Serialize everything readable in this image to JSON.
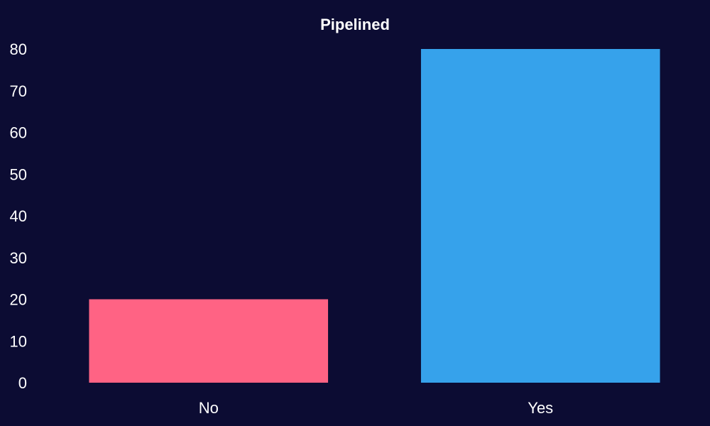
{
  "chart_data": {
    "type": "bar",
    "title": "Pipelined",
    "xlabel": "",
    "ylabel": "",
    "categories": [
      "No",
      "Yes"
    ],
    "values": [
      20,
      80
    ],
    "colors": [
      "#ff6384",
      "#36a2eb"
    ],
    "ylim": [
      0,
      80
    ],
    "yticks": [
      0,
      10,
      20,
      30,
      40,
      50,
      60,
      70,
      80
    ],
    "grid": false,
    "legend": "none"
  },
  "theme": {
    "background": "#0c0c33",
    "text": "#ffffff"
  }
}
